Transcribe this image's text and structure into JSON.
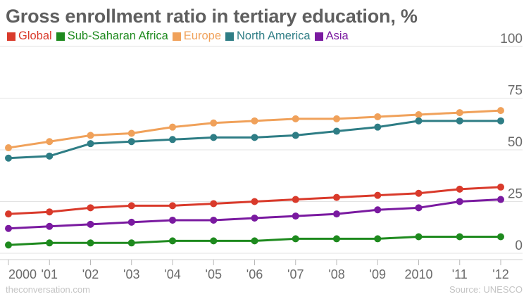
{
  "chart_data": {
    "type": "line",
    "title": "Gross enrollment ratio in tertiary education, %",
    "x": [
      "2000",
      "'01",
      "'02",
      "'03",
      "'04",
      "'05",
      "'06",
      "'07",
      "'08",
      "'09",
      "2010",
      "'11",
      "'12"
    ],
    "ylim": [
      0,
      100
    ],
    "yticks": [
      0,
      25,
      50,
      75,
      100
    ],
    "grid": true,
    "legend_position": "top-left",
    "series": [
      {
        "name": "Global",
        "color": "#d93a2b",
        "values": [
          19,
          20,
          22,
          23,
          23,
          24,
          25,
          26,
          27,
          28,
          29,
          31,
          32
        ]
      },
      {
        "name": "Sub-Saharan Africa",
        "color": "#1e8a1e",
        "values": [
          4,
          5,
          5,
          5,
          6,
          6,
          6,
          7,
          7,
          7,
          8,
          8,
          8
        ]
      },
      {
        "name": "Europe",
        "color": "#f0a15a",
        "values": [
          51,
          54,
          57,
          58,
          61,
          63,
          64,
          65,
          65,
          66,
          67,
          68,
          69
        ]
      },
      {
        "name": "North America",
        "color": "#2e7d85",
        "values": [
          46,
          47,
          53,
          54,
          55,
          56,
          56,
          57,
          59,
          61,
          64,
          64,
          64
        ]
      },
      {
        "name": "Asia",
        "color": "#7a1aa0",
        "values": [
          12,
          13,
          14,
          15,
          16,
          16,
          17,
          18,
          19,
          21,
          22,
          25,
          26
        ]
      }
    ]
  },
  "footer": {
    "source_site": "theconversation.com",
    "source": "Source: UNESCO"
  }
}
